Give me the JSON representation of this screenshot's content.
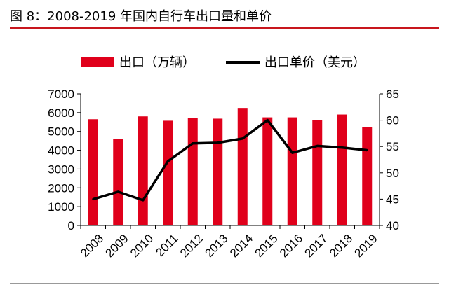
{
  "figure": {
    "title": "图 8：2008-2019 年国内自行车出口量和单价"
  },
  "chart_data": {
    "type": "bar",
    "categories": [
      "2008",
      "2009",
      "2010",
      "2011",
      "2012",
      "2013",
      "2014",
      "2015",
      "2016",
      "2017",
      "2018",
      "2019"
    ],
    "series": [
      {
        "name": "出口（万辆）",
        "type": "bar",
        "axis": "left",
        "color": "#e0001b",
        "values": [
          5650,
          4600,
          5800,
          5570,
          5700,
          5680,
          6250,
          5750,
          5750,
          5620,
          5900,
          5250
        ]
      },
      {
        "name": "出口单价（美元）",
        "type": "line",
        "axis": "right",
        "color": "#000000",
        "values": [
          45.0,
          46.4,
          44.8,
          52.2,
          55.6,
          55.7,
          56.5,
          60.0,
          53.8,
          55.1,
          54.8,
          54.3
        ]
      }
    ],
    "y_left": {
      "min": 0,
      "max": 7000,
      "ticks": [
        0,
        1000,
        2000,
        3000,
        4000,
        5000,
        6000,
        7000
      ]
    },
    "y_right": {
      "min": 40,
      "max": 65,
      "ticks": [
        40,
        45,
        50,
        55,
        60,
        65
      ]
    },
    "legend": "top",
    "grid": false
  }
}
